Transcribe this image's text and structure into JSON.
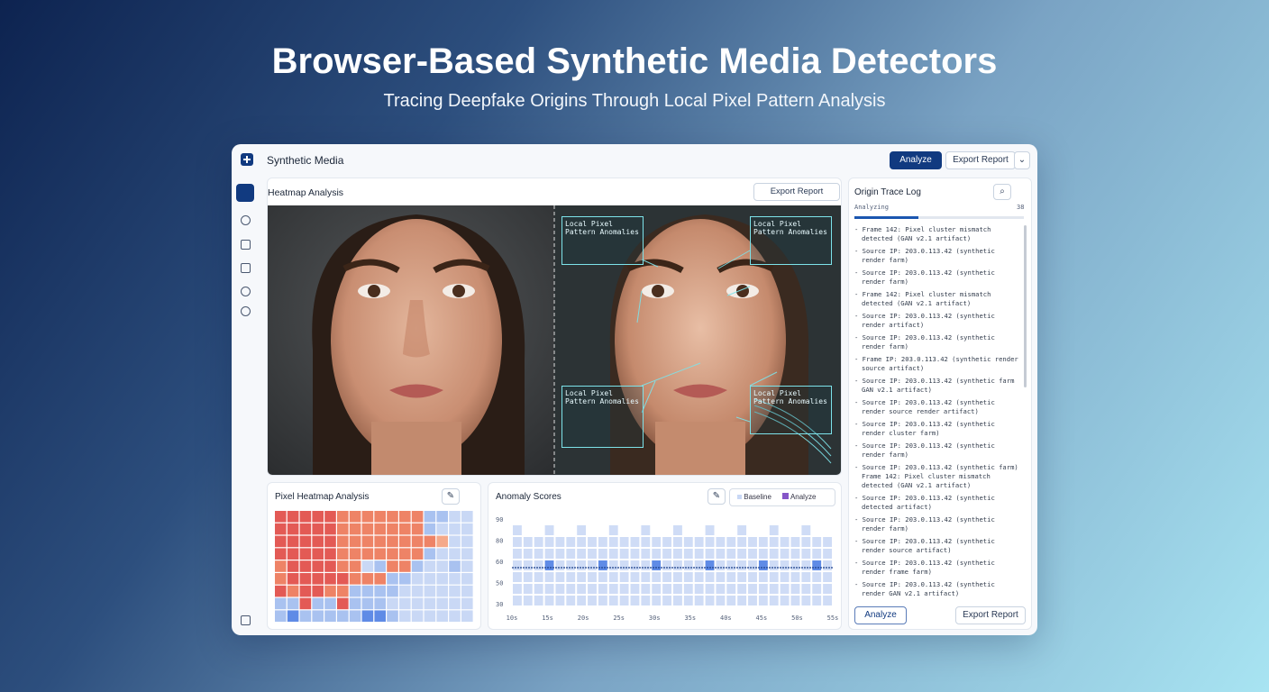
{
  "header": {
    "title": "Browser-Based Synthetic Media Detectors",
    "subtitle": "Tracing Deepfake Origins Through Local Pixel Pattern Analysis"
  },
  "app": {
    "name": "Synthetic Media",
    "analyze_button": "Analyze",
    "export_button": "Export Report"
  },
  "main_panel": {
    "title": "Heatmap Analysis",
    "export_button": "Export Report",
    "annotations": [
      "Local Pixel Pattern Anomalies",
      "Local Pixel Pattern Anomalies",
      "Local Pixel Pattern Anomalies",
      "Local Pixel Pattern Anomalies"
    ]
  },
  "heatmap_panel": {
    "title": "Pixel Heatmap Analysis",
    "rows": [
      [
        5,
        5,
        5,
        5,
        5,
        4,
        4,
        4,
        4,
        4,
        4,
        4,
        1,
        1,
        0,
        0
      ],
      [
        5,
        5,
        5,
        5,
        5,
        4,
        4,
        4,
        4,
        4,
        4,
        4,
        1,
        0,
        0,
        0
      ],
      [
        5,
        5,
        5,
        5,
        5,
        4,
        4,
        4,
        4,
        4,
        4,
        4,
        4,
        3,
        0,
        0
      ],
      [
        5,
        5,
        5,
        5,
        5,
        4,
        4,
        4,
        4,
        4,
        4,
        4,
        1,
        0,
        0,
        0
      ],
      [
        4,
        5,
        5,
        5,
        5,
        4,
        4,
        0,
        1,
        4,
        4,
        1,
        0,
        0,
        1,
        0
      ],
      [
        4,
        5,
        5,
        5,
        5,
        5,
        4,
        4,
        4,
        1,
        1,
        0,
        0,
        0,
        0,
        0
      ],
      [
        5,
        4,
        5,
        5,
        4,
        4,
        1,
        1,
        1,
        1,
        0,
        0,
        0,
        0,
        0,
        0
      ],
      [
        1,
        1,
        5,
        1,
        1,
        5,
        1,
        1,
        1,
        0,
        0,
        0,
        0,
        0,
        0,
        0
      ],
      [
        1,
        2,
        1,
        1,
        1,
        1,
        1,
        2,
        2,
        1,
        0,
        0,
        0,
        0,
        0,
        0
      ]
    ]
  },
  "anomaly_panel": {
    "title": "Anomaly Scores",
    "legend": [
      "Baseline",
      "Analyze"
    ],
    "y_labels": [
      "90",
      "80",
      "60",
      "50",
      "30"
    ],
    "x_labels": [
      "10s",
      "15s",
      "20s",
      "25s",
      "30s",
      "35s",
      "40s",
      "45s",
      "50s",
      "55s"
    ]
  },
  "log_panel": {
    "title": "Origin Trace Log",
    "progress_label": "Analyzing",
    "progress_value": "38",
    "entries": [
      "- Frame 142: Pixel cluster mismatch detected (GAN v2.1 artifact)",
      "- Source IP: 203.0.113.42 (synthetic render farm)",
      "- Source IP: 203.0.113.42 (synthetic render farm)",
      "- Frame 142: Pixel cluster mismatch detected (GAN v2.1 artifact)",
      "- Source IP: 203.0.113.42 (synthetic render artifact)",
      "- Source IP: 203.0.113.42 (synthetic render farm)",
      "- Frame IP: 203.0.113.42 (synthetic render source artifact)",
      "- Source IP: 203.0.113.42 (synthetic farm GAN v2.1 artifact)",
      "- Source IP: 203.0.113.42 (synthetic render source render artifact)",
      "- Source IP: 203.0.113.42 (synthetic render cluster farm)",
      "- Source IP: 203.0.113.42 (synthetic render farm)",
      "- Source IP: 203.0.113.42 (synthetic farm) Frame 142: Pixel cluster mismatch detected (GAN v2.1 artifact)",
      "- Source IP: 203.0.113.42 (synthetic detected artifact)",
      "- Source IP: 203.0.113.42 (synthetic render farm)",
      "- Source IP: 203.0.113.42 (synthetic render source artifact)",
      "- Source IP: 203.0.113.42 (synthetic render frame farm)",
      "- Source IP: 203.0.113.42 (synthetic render GAN v2.1 artifact)"
    ],
    "analyze_button": "Analyze",
    "export_button": "Export Report"
  }
}
